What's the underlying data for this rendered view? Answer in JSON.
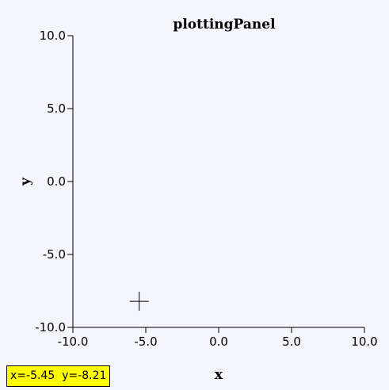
{
  "chart_data": {
    "type": "scatter",
    "title": "plottingPanel",
    "xlabel": "x",
    "ylabel": "y",
    "xlim": [
      -10.0,
      10.0
    ],
    "ylim": [
      -10.0,
      10.0
    ],
    "x_ticks": [
      "-10.0",
      "-5.0",
      "0.0",
      "5.0",
      "10.0"
    ],
    "y_ticks": [
      "10.0",
      "5.0",
      "0.0",
      "-5.0",
      "-10.0"
    ],
    "grid": false,
    "marker": {
      "x": -5.45,
      "y": -8.21,
      "shape": "crosshair"
    }
  },
  "readout": "x=-5.45  y=-8.21",
  "colors": {
    "background": "#f5f5fc",
    "readout_background": "#ffff00",
    "axis": "#000000"
  }
}
